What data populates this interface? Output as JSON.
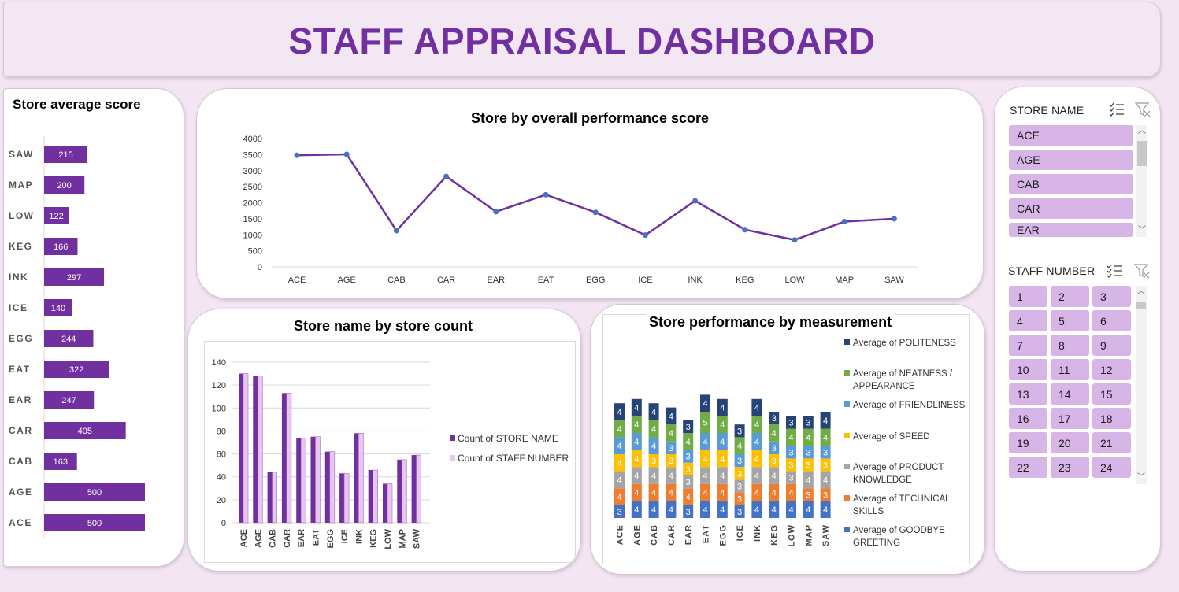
{
  "dashboard_title": "STAFF APPRAISAL DASHBOARD",
  "colors": {
    "accent": "#7030a0",
    "light_bar": "#e9c6f2",
    "background": "#f3e6f2",
    "slicer_item": "#d7b5e7"
  },
  "chart_data": [
    {
      "type": "bar",
      "orientation": "horizontal",
      "title": "Store average score",
      "categories": [
        "SAW",
        "MAP",
        "LOW",
        "KEG",
        "INK",
        "ICE",
        "EGG",
        "EAT",
        "EAR",
        "CAR",
        "CAB",
        "AGE",
        "ACE"
      ],
      "values": [
        215,
        200,
        122,
        166,
        297,
        140,
        244,
        322,
        247,
        405,
        163,
        500,
        500
      ],
      "data_labels": [
        "215",
        "200",
        "122",
        "166",
        "297",
        "140",
        "244",
        "322",
        "247",
        "405",
        "163",
        "500",
        "500"
      ],
      "xlim": [
        0,
        500
      ],
      "grid": false,
      "color": "#7030a0"
    },
    {
      "type": "line",
      "title": "Store by overall performance score",
      "categories": [
        "ACE",
        "AGE",
        "CAB",
        "CAR",
        "EAR",
        "EAT",
        "EGG",
        "ICE",
        "INK",
        "KEG",
        "LOW",
        "MAP",
        "SAW"
      ],
      "values": [
        3480,
        3510,
        1130,
        2820,
        1720,
        2250,
        1700,
        990,
        2060,
        1160,
        840,
        1410,
        1500
      ],
      "ylim": [
        0,
        4000
      ],
      "yticks": [
        "0",
        "500",
        "1000",
        "1500",
        "2000",
        "2500",
        "3000",
        "3500",
        "4000"
      ],
      "grid": false,
      "line_color": "#7030a0",
      "marker_color": "#4472c4"
    },
    {
      "type": "bar",
      "title": "Store name by store count",
      "categories": [
        "ACE",
        "AGE",
        "CAB",
        "CAR",
        "EAR",
        "EAT",
        "EGG",
        "ICE",
        "INK",
        "KEG",
        "LOW",
        "MAP",
        "SAW"
      ],
      "series": [
        {
          "name": "Count of STORE NAME",
          "values": [
            130,
            128,
            44,
            113,
            74,
            75,
            62,
            43,
            78,
            46,
            34,
            55,
            59
          ],
          "color": "#7030a0"
        },
        {
          "name": "Count of STAFF NUMBER",
          "values": [
            130,
            128,
            44,
            113,
            74,
            75,
            62,
            43,
            78,
            46,
            34,
            55,
            59
          ],
          "color": "#e9c6f2"
        }
      ],
      "ylim": [
        0,
        140
      ],
      "yticks": [
        "0",
        "20",
        "40",
        "60",
        "80",
        "100",
        "120",
        "140"
      ],
      "grid": true,
      "legend": "right"
    },
    {
      "type": "bar",
      "stacked": true,
      "title": "Store performance by measurement",
      "categories": [
        "ACE",
        "AGE",
        "CAB",
        "CAR",
        "EAR",
        "EAT",
        "EGG",
        "ICE",
        "INK",
        "KEG",
        "LOW",
        "MAP",
        "SAW"
      ],
      "series": [
        {
          "name": "Average of GOODBYE GREETING",
          "color": "#4472c4",
          "values": [
            3,
            4,
            4,
            4,
            3,
            4,
            4,
            3,
            4,
            4,
            4,
            4,
            4
          ]
        },
        {
          "name": "Average of TECHNICAL SKILLS",
          "color": "#ed7d31",
          "values": [
            4,
            4,
            4,
            4,
            4,
            4,
            4,
            3,
            4,
            4,
            4,
            3,
            3
          ]
        },
        {
          "name": "Average of PRODUCT KNOWLEDGE",
          "color": "#a5a5a5",
          "values": [
            4,
            4,
            4,
            4,
            3,
            4,
            4,
            3,
            4,
            4,
            3,
            4,
            4
          ]
        },
        {
          "name": "Average of SPEED",
          "color": "#ffc000",
          "values": [
            4,
            4,
            3,
            3,
            3,
            4,
            4,
            3,
            4,
            3,
            3,
            3,
            3
          ]
        },
        {
          "name": "Average of FRIENDLINESS",
          "color": "#5b9bd5",
          "values": [
            4,
            4,
            4,
            3,
            3,
            4,
            4,
            3,
            4,
            3,
            3,
            3,
            3
          ]
        },
        {
          "name": "Average of NEATNESS / APPEARANCE",
          "color": "#70ad47",
          "values": [
            4,
            4,
            4,
            4,
            4,
            5,
            4,
            4,
            4,
            4,
            4,
            4,
            4
          ]
        },
        {
          "name": "Average of POLITENESS",
          "color": "#264478",
          "values": [
            4,
            4,
            4,
            4,
            3,
            4,
            4,
            3,
            4,
            3,
            3,
            3,
            4
          ]
        }
      ],
      "legend_order": [
        "Average of POLITENESS",
        "Average of NEATNESS / APPEARANCE",
        "Average of FRIENDLINESS",
        "Average of SPEED",
        "Average of PRODUCT KNOWLEDGE",
        "Average of TECHNICAL SKILLS",
        "Average of GOODBYE GREETING"
      ],
      "grid": false,
      "legend": "right"
    }
  ],
  "slicers": {
    "store_name": {
      "header": "STORE NAME",
      "items": [
        "ACE",
        "AGE",
        "CAB",
        "CAR",
        "EAR"
      ]
    },
    "staff_number": {
      "header": "STAFF NUMBER",
      "items": [
        "1",
        "2",
        "3",
        "4",
        "5",
        "6",
        "7",
        "8",
        "9",
        "10",
        "11",
        "12",
        "13",
        "14",
        "15",
        "16",
        "17",
        "18",
        "19",
        "20",
        "21",
        "22",
        "23",
        "24"
      ]
    },
    "icons": [
      "multi-select-icon",
      "clear-filter-icon"
    ]
  }
}
